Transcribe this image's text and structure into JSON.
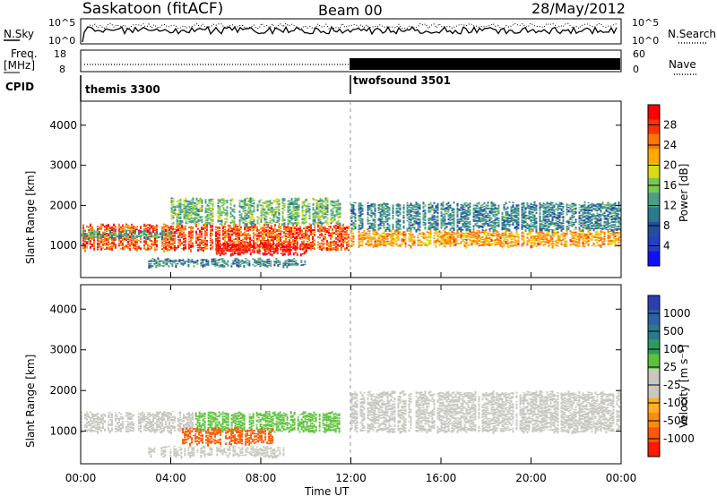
{
  "header": {
    "title": "Saskatoon (fitACF)",
    "beam": "Beam 00",
    "date": "28/May/2012"
  },
  "panels": {
    "nsky": {
      "left_label": "N.Sky",
      "right_label": "N.Search",
      "left_ticks": [
        "10^5",
        "10^0"
      ],
      "right_ticks": [
        "10^5",
        "10^0"
      ]
    },
    "freq": {
      "left_label_1": "Freq.",
      "left_label_2": "[MHz]",
      "right_label": "Nave",
      "left_ticks": [
        "18",
        "8"
      ],
      "right_ticks": [
        "60",
        "0"
      ]
    },
    "cpid": {
      "label": "CPID",
      "modes": [
        "themis 3300",
        "twofsound 3501"
      ]
    }
  },
  "colorbars": {
    "power": {
      "title": "Power [dB]",
      "ticks": [
        "28",
        "24",
        "20",
        "16",
        "12",
        "8",
        "4"
      ],
      "colors": [
        "#ff0000",
        "#ff3300",
        "#ff7700",
        "#ffaa00",
        "#d8dc10",
        "#7bc850",
        "#4a9e86",
        "#2a7a8c",
        "#264e9e",
        "#2240c0",
        "#1010ff"
      ]
    },
    "velocity": {
      "title": "Velocity [m s⁻¹]",
      "ticks": [
        "1000",
        "500",
        "100",
        "25",
        "-25",
        "-100",
        "-500",
        "-1000"
      ],
      "colors": [
        "#2a3fb0",
        "#2e62a8",
        "#2a7a8c",
        "#2f9a60",
        "#5cc23a",
        "#c8c8c0",
        "#c8c8c0",
        "#ffb020",
        "#ff8a10",
        "#ff5a00",
        "#ff1a00"
      ]
    }
  },
  "chart_data": [
    {
      "type": "heatmap",
      "panel": "power",
      "ylabel": "Slant Range [km]",
      "ylim": [
        200,
        4600
      ],
      "y_ticks": [
        "4000",
        "3000",
        "2000",
        "1000"
      ],
      "xlim": [
        0,
        24
      ],
      "bands": [
        {
          "t0": 0.0,
          "t1": 12.0,
          "r0": 900,
          "r1": 1550,
          "dB": 26
        },
        {
          "t0": 0.0,
          "t1": 4.0,
          "r0": 1200,
          "r1": 1400,
          "dB": 12
        },
        {
          "t0": 4.0,
          "t1": 11.5,
          "r0": 1550,
          "r1": 2200,
          "dB": 14
        },
        {
          "t0": 3.0,
          "t1": 10.0,
          "r0": 500,
          "r1": 700,
          "dB": 10
        },
        {
          "t0": 6.0,
          "t1": 10.0,
          "r0": 800,
          "r1": 1100,
          "dB": 30
        },
        {
          "t0": 12.0,
          "t1": 24.0,
          "r0": 1000,
          "r1": 1400,
          "dB": 22
        },
        {
          "t0": 12.0,
          "t1": 24.0,
          "r0": 1400,
          "r1": 2100,
          "dB": 10
        }
      ]
    },
    {
      "type": "heatmap",
      "panel": "velocity",
      "ylabel": "Slant Range [km]",
      "ylim": [
        200,
        4600
      ],
      "y_ticks": [
        "4000",
        "3000",
        "2000",
        "1000"
      ],
      "xlabel": "Time UT",
      "x_ticks": [
        "00:00",
        "04:00",
        "08:00",
        "12:00",
        "16:00",
        "20:00",
        "00:00"
      ],
      "xlim": [
        0,
        24
      ],
      "bands": [
        {
          "t0": 0.0,
          "t1": 5.0,
          "r0": 1000,
          "r1": 1500,
          "v": 0
        },
        {
          "t0": 5.0,
          "t1": 11.5,
          "r0": 1000,
          "r1": 1500,
          "v": 200
        },
        {
          "t0": 4.5,
          "t1": 8.5,
          "r0": 700,
          "r1": 1100,
          "v": -400
        },
        {
          "t0": 12.0,
          "t1": 24.0,
          "r0": 1000,
          "r1": 2000,
          "v": 0
        },
        {
          "t0": 3.0,
          "t1": 9.0,
          "r0": 400,
          "r1": 650,
          "v": 0
        }
      ]
    }
  ]
}
